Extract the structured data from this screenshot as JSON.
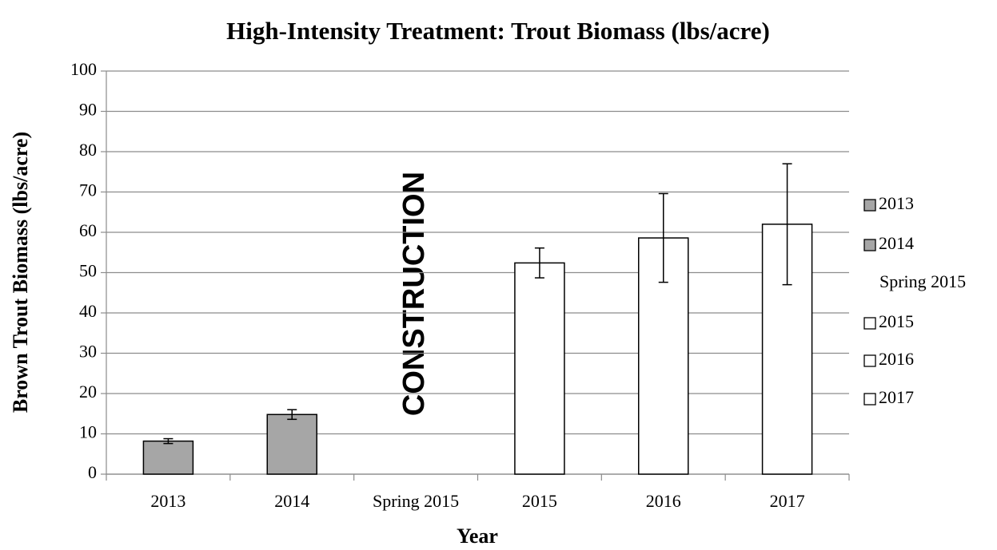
{
  "chart_data": {
    "type": "bar",
    "title": "High-Intensity Treatment: Trout Biomass (lbs/acre)",
    "x_label": "Year",
    "y_label": "Brown Trout Biomass (lbs/acre)",
    "annotation": "CONSTRUCTION",
    "categories": [
      "2013",
      "2014",
      "Spring 2015",
      "2015",
      "2016",
      "2017"
    ],
    "values": [
      8.2,
      14.8,
      null,
      52.4,
      58.6,
      62.0
    ],
    "errors": [
      0.6,
      1.2,
      null,
      3.7,
      11,
      15
    ],
    "colors": [
      "#a6a6a6",
      "#a6a6a6",
      null,
      "#ffffff",
      "#ffffff",
      "#ffffff"
    ],
    "ylim": [
      0,
      100
    ],
    "yticks": [
      0,
      10,
      20,
      30,
      40,
      50,
      60,
      70,
      80,
      90,
      100
    ],
    "grid": true,
    "legend": "right"
  }
}
